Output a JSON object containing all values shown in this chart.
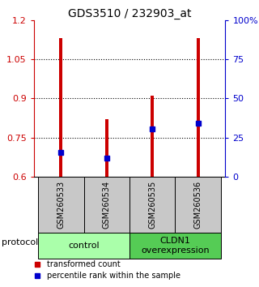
{
  "title": "GDS3510 / 232903_at",
  "samples": [
    "GSM260533",
    "GSM260534",
    "GSM260535",
    "GSM260536"
  ],
  "bar_bottom": 0.6,
  "red_values": [
    1.13,
    0.82,
    0.91,
    1.13
  ],
  "blue_values": [
    0.693,
    0.672,
    0.782,
    0.806
  ],
  "ylim_left": [
    0.6,
    1.2
  ],
  "ylim_right": [
    0,
    100
  ],
  "yticks_left": [
    0.6,
    0.75,
    0.9,
    1.05,
    1.2
  ],
  "yticks_right": [
    0,
    25,
    50,
    75,
    100
  ],
  "ytick_labels_left": [
    "0.6",
    "0.75",
    "0.9",
    "1.05",
    "1.2"
  ],
  "ytick_labels_right": [
    "0",
    "25",
    "50",
    "75",
    "100%"
  ],
  "left_color": "#CC0000",
  "right_color": "#0000CC",
  "bar_width": 0.07,
  "blue_marker_size": 5,
  "sample_bg": "#C8C8C8",
  "group1_label": "control",
  "group2_label": "CLDN1\noverexpression",
  "group1_color": "#AAFFAA",
  "group2_color": "#55CC55",
  "legend_red": "transformed count",
  "legend_blue": "percentile rank within the sample",
  "protocol_label": "protocol"
}
